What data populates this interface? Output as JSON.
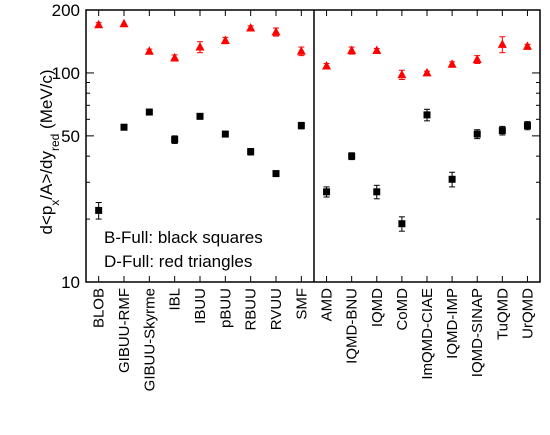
{
  "chart_data": {
    "type": "scatter",
    "ylabel": "d<p_x/A>/dy_red (MeV/c)",
    "yscale": "log",
    "ylim": [
      10,
      200
    ],
    "yticks": [
      10,
      50,
      100,
      200
    ],
    "legend": [
      "B-Full: black squares",
      "D-Full: red triangles"
    ],
    "legend_placement": "bottom-left",
    "grid": false,
    "colors": {
      "b_full": "#000000",
      "d_full": "#ff0000"
    },
    "panels": [
      {
        "categories": [
          "BLOB",
          "GIBUU-RMF",
          "GIBUU-Skyrme",
          "IBL",
          "IBUU",
          "pBUU",
          "RBUU",
          "RVUU",
          "SMF"
        ],
        "series": [
          {
            "marker": "square",
            "values": [
              22,
              55,
              65,
              48,
              62,
              51,
              42,
              33,
              56
            ],
            "errors": [
              2,
              1,
              1,
              2,
              1,
              1,
              1.5,
              0.5,
              2
            ]
          },
          {
            "marker": "triangle",
            "values": [
              170,
              null,
              127,
              118,
              133,
              143,
              164,
              157,
              127
            ],
            "errors": [
              4,
              0,
              3,
              4,
              8,
              5,
              4,
              7,
              6
            ]
          }
        ]
      },
      {
        "categories": [
          "AMD",
          "IQMD-BNU",
          "IQMD",
          "CoMD",
          "ImQMD-CIAE",
          "IQMD-IMP",
          "IQMD-SINAP",
          "TuQMD",
          "UrQMD"
        ],
        "series": [
          {
            "marker": "square",
            "values": [
              27,
              40,
              27,
              19,
              63,
              31,
              51,
              53,
              56
            ],
            "errors": [
              1.5,
              1.5,
              2,
              1.5,
              4,
              2.5,
              2.5,
              2.5,
              2.5
            ]
          },
          {
            "marker": "triangle",
            "values": [
              108,
              128,
              128,
              98,
              100,
              110,
              116,
              137,
              134
            ],
            "errors": [
              3,
              5,
              3,
              5,
              2,
              3,
              5,
              12,
              3
            ]
          }
        ]
      }
    ]
  }
}
